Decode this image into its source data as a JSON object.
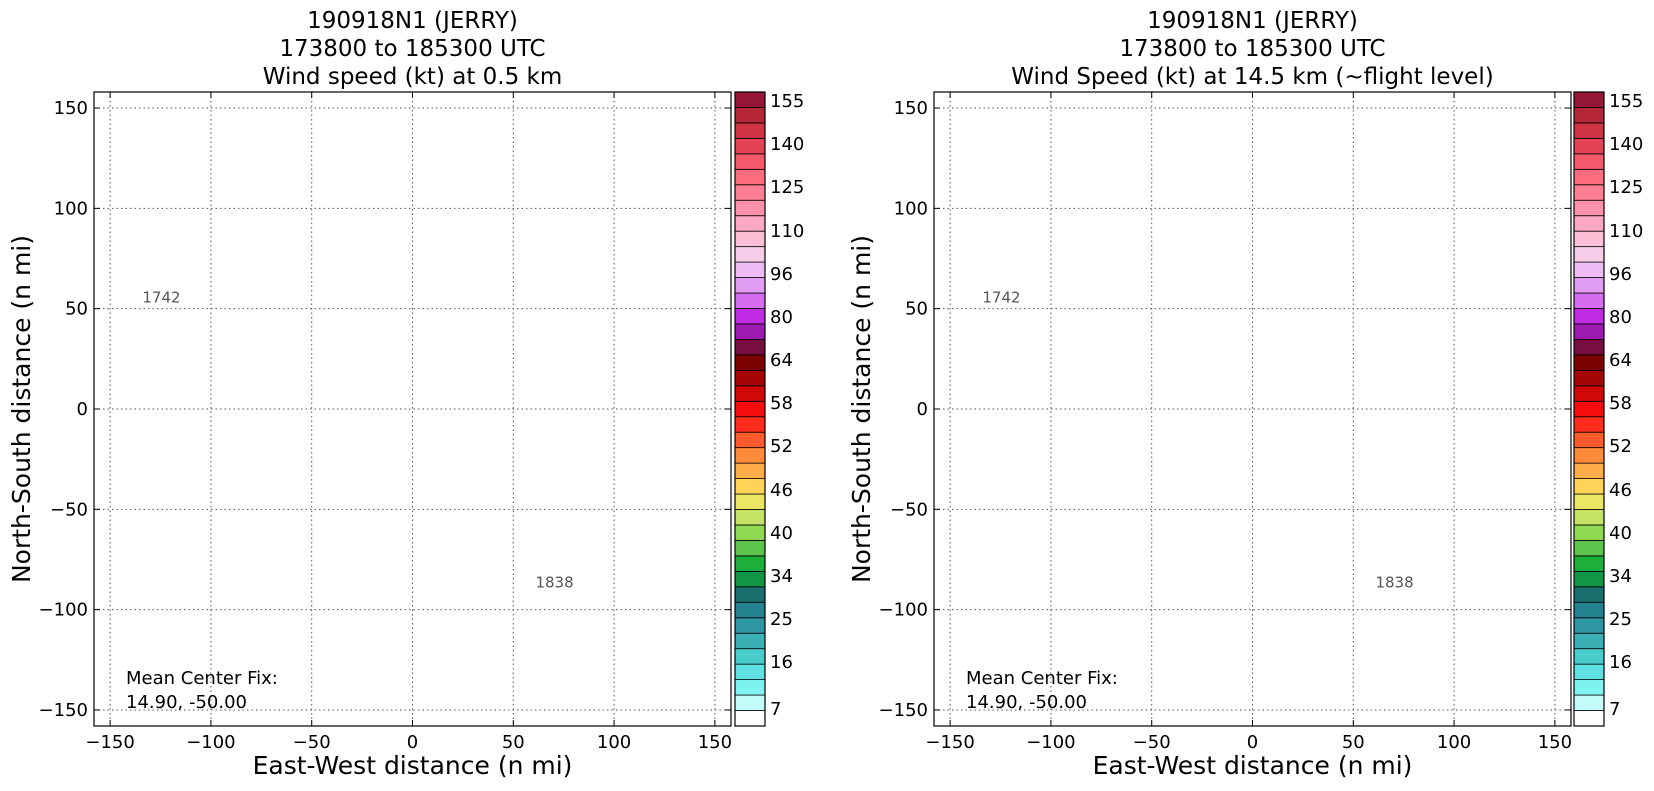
{
  "chart_data": [
    {
      "type": "scatter",
      "title": [
        "190918N1 (JERRY)",
        "173800 to 185300 UTC",
        "Wind speed (kt) at 0.5 km"
      ],
      "xlabel": "East-West distance (n mi)",
      "ylabel": "North-South distance (n mi)",
      "xlim": [
        -158,
        158
      ],
      "ylim": [
        -158,
        158
      ],
      "xticks": [
        "−150",
        "−100",
        "−50",
        "0",
        "50",
        "100",
        "150"
      ],
      "yticks": [
        "−150",
        "−100",
        "−50",
        "0",
        "50",
        "100",
        "150"
      ],
      "grid": true,
      "annotations": [
        {
          "text": "1742",
          "x": -134,
          "y": 53
        },
        {
          "text": "1838",
          "x": 61,
          "y": -89
        }
      ],
      "center_fix_label": "Mean Center Fix:",
      "center_fix_value": "14.90, -50.00",
      "colorbar": {
        "tick_labels": [
          "155",
          "140",
          "125",
          "110",
          "96",
          "80",
          "64",
          "58",
          "52",
          "46",
          "40",
          "34",
          "25",
          "16",
          "7"
        ]
      }
    },
    {
      "type": "scatter",
      "title": [
        "190918N1 (JERRY)",
        "173800 to 185300 UTC",
        "Wind Speed (kt) at 14.5 km (~flight level)"
      ],
      "xlabel": "East-West distance (n mi)",
      "ylabel": "North-South distance (n mi)",
      "xlim": [
        -158,
        158
      ],
      "ylim": [
        -158,
        158
      ],
      "xticks": [
        "−150",
        "−100",
        "−50",
        "0",
        "50",
        "100",
        "150"
      ],
      "yticks": [
        "−150",
        "−100",
        "−50",
        "0",
        "50",
        "100",
        "150"
      ],
      "grid": true,
      "annotations": [
        {
          "text": "1742",
          "x": -134,
          "y": 53
        },
        {
          "text": "1838",
          "x": 61,
          "y": -89
        }
      ],
      "center_fix_label": "Mean Center Fix:",
      "center_fix_value": "14.90, -50.00",
      "colorbar": {
        "tick_labels": [
          "155",
          "140",
          "125",
          "110",
          "96",
          "80",
          "64",
          "58",
          "52",
          "46",
          "40",
          "34",
          "25",
          "16",
          "7"
        ]
      }
    }
  ],
  "colorbar_colors": [
    "#ffffff",
    "#c2fbfa",
    "#7ff3f2",
    "#5fe1e1",
    "#48cccc",
    "#3aafb4",
    "#2d96a2",
    "#23838f",
    "#19706f",
    "#119744",
    "#1eae3c",
    "#5fc44d",
    "#8fd852",
    "#c3e266",
    "#ece665",
    "#fed358",
    "#ffad48",
    "#ff8b3a",
    "#ff5a2c",
    "#ff2b1c",
    "#f50d0d",
    "#d00808",
    "#a50505",
    "#7d0202",
    "#780d3f",
    "#9d1ab1",
    "#c12ae3",
    "#d56df0",
    "#e29ef2",
    "#eebbf4",
    "#f6cde8",
    "#fdbfd6",
    "#fca8c4",
    "#ff91a8",
    "#ff8094",
    "#fd6d7f",
    "#f4596b",
    "#e34355",
    "#cf3344",
    "#b52638",
    "#961638"
  ],
  "tick_values": [
    -150,
    -100,
    -50,
    0,
    50,
    100,
    150
  ],
  "cb_tick_boundaries": [
    39,
    36,
    33,
    30,
    27,
    24,
    21,
    18,
    15,
    12,
    9,
    6,
    3,
    0,
    -2
  ]
}
